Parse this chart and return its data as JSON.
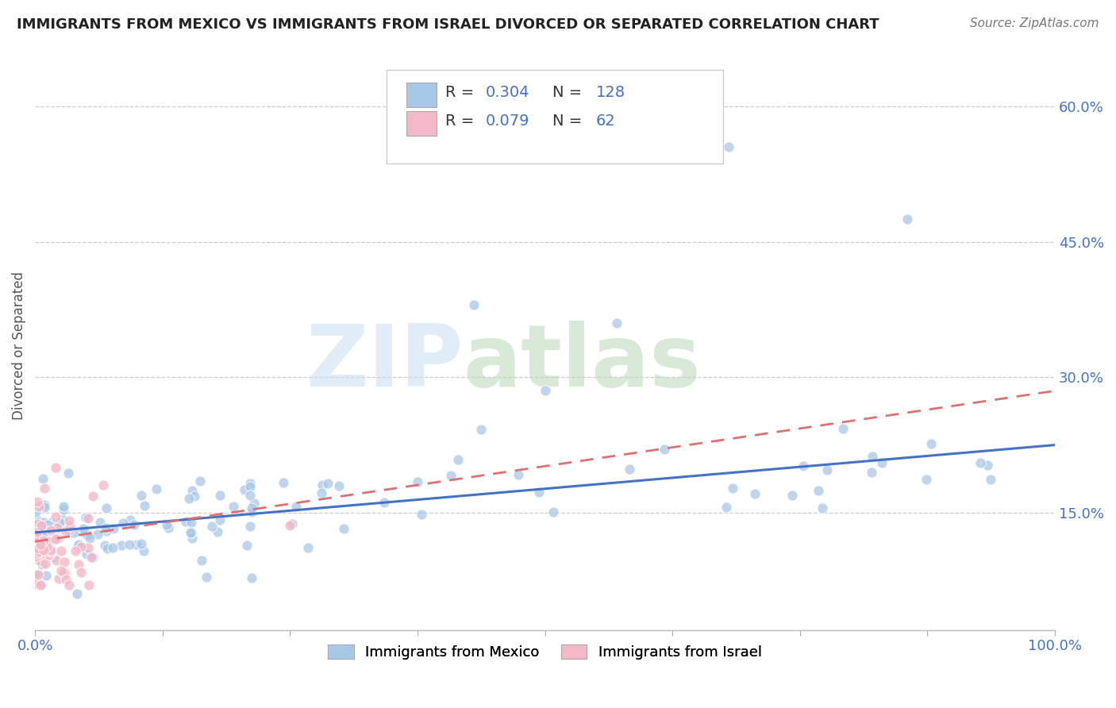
{
  "title": "IMMIGRANTS FROM MEXICO VS IMMIGRANTS FROM ISRAEL DIVORCED OR SEPARATED CORRELATION CHART",
  "source": "Source: ZipAtlas.com",
  "ylabel": "Divorced or Separated",
  "legend_labels": [
    "Immigrants from Mexico",
    "Immigrants from Israel"
  ],
  "legend_r": [
    "0.304",
    "0.079"
  ],
  "legend_n": [
    "128",
    "62"
  ],
  "blue_color": "#a8c8e8",
  "pink_color": "#f4b8c8",
  "blue_line_color": "#4472c4",
  "pink_line_color": "#e07070",
  "ytick_labels": [
    "15.0%",
    "30.0%",
    "45.0%",
    "60.0%"
  ],
  "ytick_values": [
    0.15,
    0.3,
    0.45,
    0.6
  ],
  "xlim": [
    0.0,
    1.0
  ],
  "ylim": [
    0.02,
    0.65
  ],
  "mexico_trend_x": [
    0.0,
    1.0
  ],
  "mexico_trend_y": [
    0.128,
    0.225
  ],
  "israel_trend_x": [
    0.0,
    1.0
  ],
  "israel_trend_y": [
    0.118,
    0.285
  ],
  "title_fontsize": 13,
  "source_fontsize": 11,
  "tick_fontsize": 13,
  "ylabel_fontsize": 12
}
